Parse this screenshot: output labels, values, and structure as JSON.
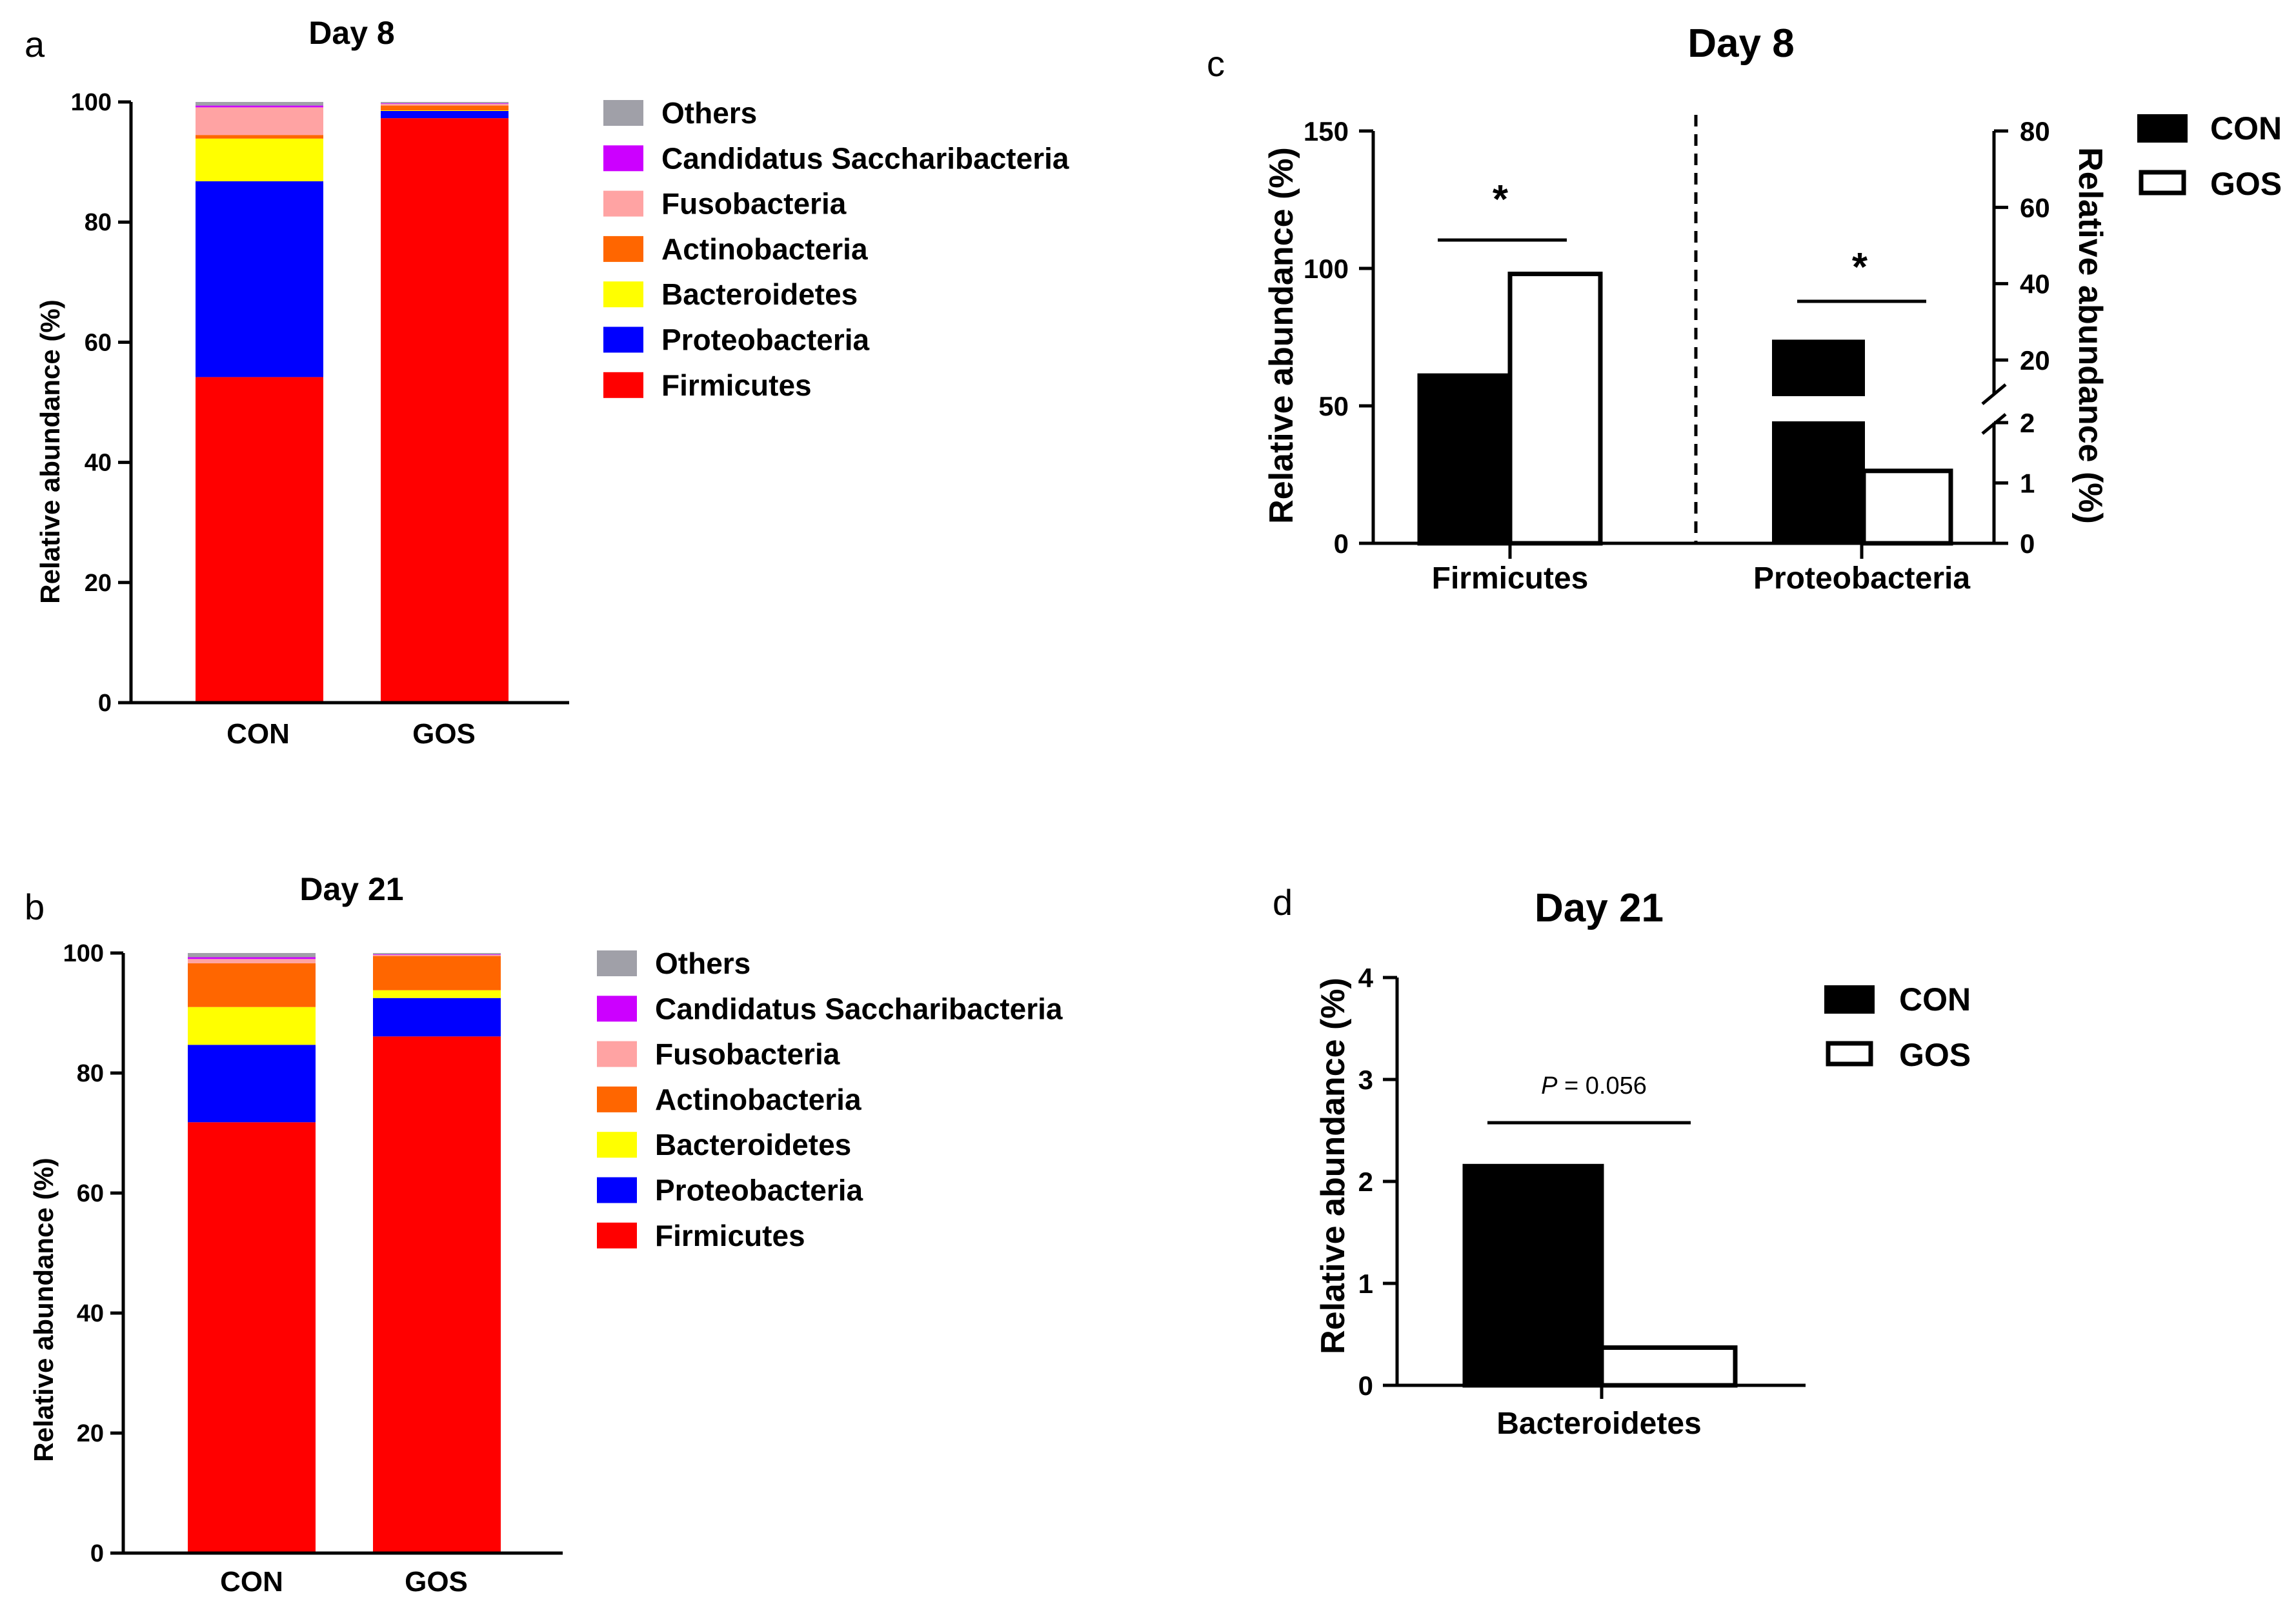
{
  "chart_data": [
    {
      "panel": "a",
      "type": "bar",
      "stacked": true,
      "title": "Day 8",
      "xlabel": "",
      "ylabel": "Relative abundance (%)",
      "ylim": [
        0,
        100
      ],
      "yticks": [
        "0",
        "20",
        "40",
        "60",
        "80",
        "100"
      ],
      "categories": [
        "CON",
        "GOS"
      ],
      "series": [
        {
          "name": "Firmicutes",
          "color": "#ff0000",
          "values": [
            54.2,
            97.3
          ]
        },
        {
          "name": "Proteobacteria",
          "color": "#0000ff",
          "values": [
            32.6,
            1.2
          ]
        },
        {
          "name": "Bacteroidetes",
          "color": "#ffff00",
          "values": [
            7.1,
            0.1
          ]
        },
        {
          "name": "Actinobacteria",
          "color": "#ff6600",
          "values": [
            0.6,
            0.8
          ]
        },
        {
          "name": "Fusobacteria",
          "color": "#ffa3a3",
          "values": [
            4.6,
            0.3
          ]
        },
        {
          "name": "Candidatus Saccharibacteria",
          "color": "#cc00ff",
          "values": [
            0.3,
            0.1
          ]
        },
        {
          "name": "Others",
          "color": "#a0a0a8",
          "values": [
            0.6,
            0.2
          ]
        }
      ]
    },
    {
      "panel": "b",
      "type": "bar",
      "stacked": true,
      "title": "Day 21",
      "xlabel": "",
      "ylabel": "Relative abundance (%)",
      "ylim": [
        0,
        100
      ],
      "yticks": [
        "0",
        "20",
        "40",
        "60",
        "80",
        "100"
      ],
      "categories": [
        "CON",
        "GOS"
      ],
      "series": [
        {
          "name": "Firmicutes",
          "color": "#ff0000",
          "values": [
            71.8,
            86.1
          ]
        },
        {
          "name": "Proteobacteria",
          "color": "#0000ff",
          "values": [
            12.9,
            6.4
          ]
        },
        {
          "name": "Bacteroidetes",
          "color": "#ffff00",
          "values": [
            6.3,
            1.3
          ]
        },
        {
          "name": "Actinobacteria",
          "color": "#ff6600",
          "values": [
            7.3,
            5.7
          ]
        },
        {
          "name": "Fusobacteria",
          "color": "#ffa3a3",
          "values": [
            0.7,
            0.2
          ]
        },
        {
          "name": "Candidatus Saccharibacteria",
          "color": "#cc00ff",
          "values": [
            0.3,
            0.1
          ]
        },
        {
          "name": "Others",
          "color": "#a0a0a8",
          "values": [
            0.7,
            0.2
          ]
        }
      ]
    },
    {
      "panel": "c",
      "type": "bar",
      "title": "Day 8",
      "xlabel": "",
      "ylabel": "Relative abundance (%)",
      "ylim": [
        0,
        150
      ],
      "yticks": [
        "0",
        "50",
        "100",
        "150"
      ],
      "ylabel_right": "Relative abundance (%)",
      "yticks_right": [
        "0",
        "1",
        "2",
        "20",
        "40",
        "60",
        "80"
      ],
      "categories": [
        "Firmicutes",
        "Proteobacteria"
      ],
      "series": [
        {
          "name": "CON",
          "fill": "#000000",
          "values": [
            61,
            25
          ]
        },
        {
          "name": "GOS",
          "fill": "#ffffff",
          "values": [
            98,
            1.2
          ]
        }
      ],
      "significance": [
        "*",
        "*"
      ],
      "legend": [
        "CON",
        "GOS"
      ]
    },
    {
      "panel": "d",
      "type": "bar",
      "title": "Day 21",
      "xlabel": "",
      "ylabel": "Relative abundance (%)",
      "ylim": [
        0,
        4
      ],
      "yticks": [
        "0",
        "1",
        "2",
        "3",
        "4"
      ],
      "categories": [
        "Bacteroidetes"
      ],
      "series": [
        {
          "name": "CON",
          "fill": "#000000",
          "values": [
            2.15
          ]
        },
        {
          "name": "GOS",
          "fill": "#ffffff",
          "values": [
            0.37
          ]
        }
      ],
      "annotation_p": "P",
      "annotation_text": " = 0.056",
      "legend": [
        "CON",
        "GOS"
      ]
    }
  ]
}
